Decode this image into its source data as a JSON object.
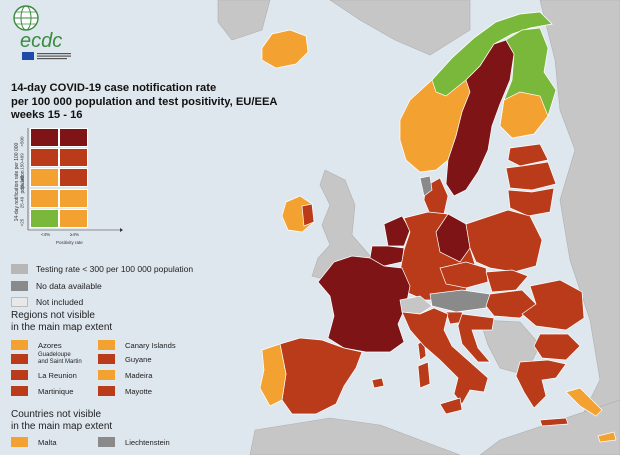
{
  "colors": {
    "sea": "#dfe7ee",
    "non_eu_land": "#c6c6c6",
    "dark_red": "#7e1415",
    "red": "#b93b1a",
    "orange": "#f3a232",
    "green": "#79b83a",
    "testing_low": "#b7b7b7",
    "no_data": "#8a8a8a",
    "not_included": "#e8e8e8"
  },
  "logo": {
    "text": "ecdc"
  },
  "title": {
    "line1": "14-day COVID-19 case notification rate",
    "line2": "per 100 000 population and test positivity, EU/EEA",
    "line3": "weeks 15 - 16"
  },
  "matrix": {
    "y_axis_label": "14-day notification rate per 100 000 population",
    "y_ticks": [
      "<25",
      "25-49",
      "50-149",
      "150-499",
      ">500"
    ],
    "x_axis_label": "Positivity rate",
    "x_ticks": [
      "<4%",
      "≥4%"
    ],
    "cells_top_to_bottom": [
      [
        "dark_red",
        "dark_red"
      ],
      [
        "red",
        "red"
      ],
      [
        "orange",
        "red"
      ],
      [
        "orange",
        "orange"
      ],
      [
        "green",
        "orange"
      ]
    ]
  },
  "legend": {
    "testing_low": "Testing rate < 300 per 100 000 population",
    "no_data": "No data available",
    "not_included": "Not included"
  },
  "regions": {
    "heading_line1": "Regions not visible",
    "heading_line2": "in the main map extent",
    "items": [
      {
        "label": "Azores",
        "color": "orange"
      },
      {
        "label": "Canary Islands",
        "color": "orange"
      },
      {
        "label": "Guadeloupe\nand Saint Martin",
        "color": "red"
      },
      {
        "label": "Guyane",
        "color": "red"
      },
      {
        "label": "La Reunion",
        "color": "red"
      },
      {
        "label": "Madeira",
        "color": "orange"
      },
      {
        "label": "Martinique",
        "color": "red"
      },
      {
        "label": "Mayotte",
        "color": "red"
      }
    ]
  },
  "countries": {
    "heading_line1": "Countries not visible",
    "heading_line2": "in the main map extent",
    "items": [
      {
        "label": "Malta",
        "color": "orange"
      },
      {
        "label": "Liechtenstein",
        "color": "no_data"
      }
    ]
  },
  "map_regions": [
    {
      "name": "Norway",
      "status": "orange"
    },
    {
      "name": "Sweden",
      "status": "dark_red"
    },
    {
      "name": "Finland",
      "status": "green"
    },
    {
      "name": "Iceland",
      "status": "orange"
    },
    {
      "name": "Ireland",
      "status": "orange"
    },
    {
      "name": "Denmark",
      "status": "red"
    },
    {
      "name": "Estonia",
      "status": "red"
    },
    {
      "name": "Latvia",
      "status": "red"
    },
    {
      "name": "Lithuania",
      "status": "red"
    },
    {
      "name": "Poland",
      "status": "red"
    },
    {
      "name": "Germany",
      "status": "red"
    },
    {
      "name": "Netherlands",
      "status": "dark_red"
    },
    {
      "name": "Belgium",
      "status": "dark_red"
    },
    {
      "name": "Luxembourg",
      "status": "red"
    },
    {
      "name": "France",
      "status": "dark_red"
    },
    {
      "name": "Czechia",
      "status": "red"
    },
    {
      "name": "Slovakia",
      "status": "red"
    },
    {
      "name": "Austria",
      "status": "no_data"
    },
    {
      "name": "Hungary",
      "status": "red"
    },
    {
      "name": "Slovenia",
      "status": "red"
    },
    {
      "name": "Croatia",
      "status": "red"
    },
    {
      "name": "Romania",
      "status": "red"
    },
    {
      "name": "Bulgaria",
      "status": "red"
    },
    {
      "name": "Greece",
      "status": "red"
    },
    {
      "name": "Italy",
      "status": "red"
    },
    {
      "name": "Spain",
      "status": "red"
    },
    {
      "name": "Portugal",
      "status": "orange"
    },
    {
      "name": "Cyprus",
      "status": "orange"
    }
  ]
}
